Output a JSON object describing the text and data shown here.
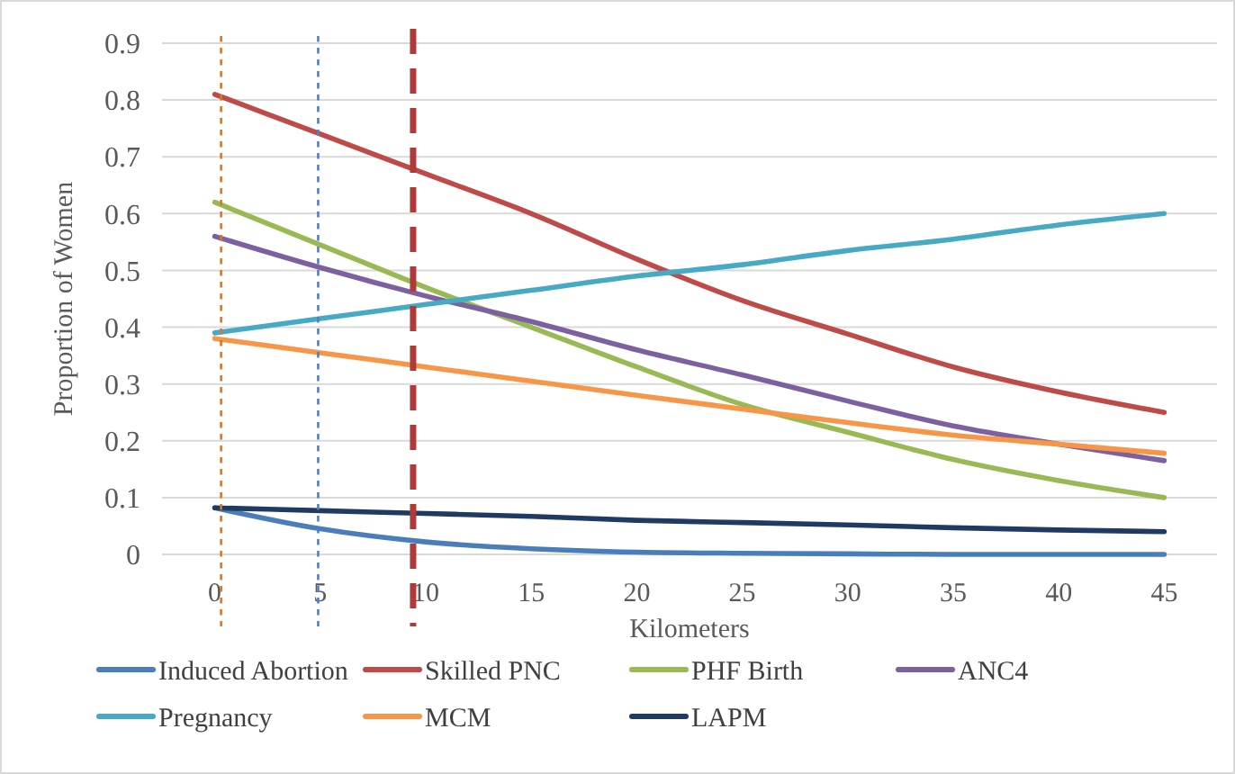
{
  "chart_data": {
    "type": "line",
    "xlabel": "Kilometers",
    "ylabel": "Proportion of Women",
    "x": [
      0,
      5,
      10,
      15,
      20,
      25,
      30,
      35,
      40,
      45
    ],
    "xlim": [
      -2.5,
      47.5
    ],
    "xticks": [
      0,
      5,
      10,
      15,
      20,
      25,
      30,
      35,
      40,
      45
    ],
    "ylim": [
      0,
      0.9
    ],
    "yticks": [
      0,
      0.1,
      0.2,
      0.3,
      0.4,
      0.5,
      0.6,
      0.7,
      0.8,
      0.9
    ],
    "grid": "y",
    "legend": "bottom",
    "marker": "none",
    "line_style": "solid",
    "series": [
      {
        "name": "Induced Abortion",
        "color": "#4a7ebb",
        "values": [
          0.082,
          0.045,
          0.022,
          0.01,
          0.004,
          0.002,
          0.001,
          0,
          0,
          0
        ]
      },
      {
        "name": "Skilled PNC",
        "color": "#be4b48",
        "values": [
          0.81,
          0.74,
          0.67,
          0.6,
          0.52,
          0.447,
          0.388,
          0.33,
          0.286,
          0.25
        ]
      },
      {
        "name": "PHF Birth",
        "color": "#98b954",
        "values": [
          0.62,
          0.545,
          0.47,
          0.4,
          0.33,
          0.264,
          0.215,
          0.167,
          0.13,
          0.1
        ]
      },
      {
        "name": "ANC4",
        "color": "#7d60a0",
        "values": [
          0.56,
          0.505,
          0.455,
          0.41,
          0.36,
          0.316,
          0.27,
          0.226,
          0.194,
          0.165
        ]
      },
      {
        "name": "Pregnancy",
        "color": "#46aac5",
        "values": [
          0.39,
          0.415,
          0.44,
          0.465,
          0.49,
          0.51,
          0.535,
          0.555,
          0.58,
          0.6
        ]
      },
      {
        "name": "MCM",
        "color": "#f79646",
        "values": [
          0.38,
          0.355,
          0.33,
          0.305,
          0.28,
          0.256,
          0.232,
          0.21,
          0.194,
          0.178
        ]
      },
      {
        "name": "LAPM",
        "color": "#1f3b64",
        "values": [
          0.082,
          0.077,
          0.072,
          0.067,
          0.06,
          0.056,
          0.052,
          0.047,
          0.043,
          0.04
        ]
      }
    ],
    "ref_lines": [
      {
        "axis": "x",
        "value": 0.3,
        "color": "#d07a2a",
        "line_style": "dashed"
      },
      {
        "axis": "x",
        "value": 4.9,
        "color": "#4f81bd",
        "line_style": "dashed"
      },
      {
        "axis": "x",
        "value": 9.4,
        "color": "#b03a3a",
        "line_style": "longdash"
      }
    ]
  }
}
